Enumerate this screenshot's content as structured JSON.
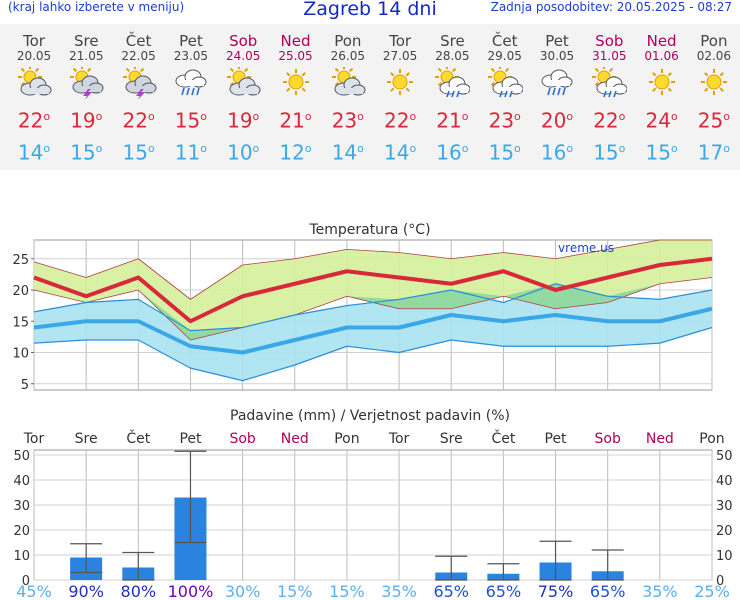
{
  "header": {
    "menu_hint": "(kraj lahko izberete v meniju)",
    "title": "Zagreb 14 dni",
    "updated": "Zadnja posodobitev: 20.05.2025 - 08:27"
  },
  "degree": "o",
  "days": [
    {
      "name": "Tor",
      "date": "20.05",
      "weekend": false,
      "icon": "sun-cloud-icon",
      "tmax": "22",
      "tmin": "14"
    },
    {
      "name": "Sre",
      "date": "21.05",
      "weekend": false,
      "icon": "sun-storm-icon",
      "tmax": "19",
      "tmin": "15"
    },
    {
      "name": "Čet",
      "date": "22.05",
      "weekend": false,
      "icon": "sun-storm-icon",
      "tmax": "22",
      "tmin": "15"
    },
    {
      "name": "Pet",
      "date": "23.05",
      "weekend": false,
      "icon": "rain-cloud-icon",
      "tmax": "15",
      "tmin": "11"
    },
    {
      "name": "Sob",
      "date": "24.05",
      "weekend": true,
      "icon": "sun-cloud-icon",
      "tmax": "19",
      "tmin": "10"
    },
    {
      "name": "Ned",
      "date": "25.05",
      "weekend": true,
      "icon": "sun-icon",
      "tmax": "21",
      "tmin": "12"
    },
    {
      "name": "Pon",
      "date": "26.05",
      "weekend": false,
      "icon": "sun-cloud-icon",
      "tmax": "23",
      "tmin": "14"
    },
    {
      "name": "Tor",
      "date": "27.05",
      "weekend": false,
      "icon": "sun-icon",
      "tmax": "22",
      "tmin": "14"
    },
    {
      "name": "Sre",
      "date": "28.05",
      "weekend": false,
      "icon": "sun-rain-icon",
      "tmax": "21",
      "tmin": "16"
    },
    {
      "name": "Čet",
      "date": "29.05",
      "weekend": false,
      "icon": "sun-rain-icon",
      "tmax": "23",
      "tmin": "15"
    },
    {
      "name": "Pet",
      "date": "30.05",
      "weekend": false,
      "icon": "rain-cloud-icon",
      "tmax": "20",
      "tmin": "16"
    },
    {
      "name": "Sob",
      "date": "31.05",
      "weekend": true,
      "icon": "sun-rain-icon",
      "tmax": "22",
      "tmin": "15"
    },
    {
      "name": "Ned",
      "date": "01.06",
      "weekend": true,
      "icon": "sun-icon",
      "tmax": "24",
      "tmin": "15"
    },
    {
      "name": "Pon",
      "date": "02.06",
      "weekend": false,
      "icon": "sun-icon",
      "tmax": "25",
      "tmin": "17"
    }
  ],
  "colors": {
    "max_line": "#d8283a",
    "min_line": "#3aa8e8",
    "max_band": "#d4ef9a",
    "min_band": "#a8e2f0",
    "overlap": "#8fd89a",
    "bar": "#2b83e0",
    "grid": "#aaaaaa",
    "weekend": "#b0005a"
  },
  "chart_data": [
    {
      "type": "area",
      "title": "Temperatura (°C)",
      "watermark": "vreme.us",
      "ylim": [
        4,
        28
      ],
      "yticks": [
        5,
        10,
        15,
        20,
        25
      ],
      "x": [
        "20.05",
        "21.05",
        "22.05",
        "23.05",
        "24.05",
        "25.05",
        "26.05",
        "27.05",
        "28.05",
        "29.05",
        "30.05",
        "31.05",
        "01.06",
        "02.06"
      ],
      "series": [
        {
          "values": [
            22,
            19,
            22,
            15,
            19,
            21,
            23,
            22,
            21,
            23,
            20,
            22,
            24,
            25
          ]
        },
        {
          "values": [
            14,
            15,
            15,
            11,
            10,
            12,
            14,
            14,
            16,
            15,
            16,
            15,
            15,
            17
          ]
        },
        {
          "values": [
            24.5,
            22,
            25,
            18.5,
            24,
            25,
            26.5,
            26,
            25,
            26,
            25,
            26.5,
            28,
            28
          ]
        },
        {
          "values": [
            20,
            18,
            20,
            12,
            14,
            16,
            19,
            17,
            17,
            19,
            17,
            18,
            21,
            22
          ]
        },
        {
          "values": [
            16.5,
            18,
            18.5,
            13.5,
            14,
            16,
            17.5,
            18.5,
            20,
            18,
            21,
            19,
            18.5,
            20
          ]
        },
        {
          "values": [
            11.5,
            12,
            12,
            7.5,
            5.5,
            8,
            11,
            10,
            12,
            11,
            11,
            11,
            11.5,
            14
          ]
        }
      ]
    },
    {
      "type": "bar",
      "title": "Padavine (mm) / Verjetnost padavin (%)",
      "ylim": [
        0,
        52
      ],
      "yticks": [
        0,
        10,
        20,
        30,
        40,
        50
      ],
      "categories": [
        "Tor",
        "Sre",
        "Čet",
        "Pet",
        "Sob",
        "Ned",
        "Pon",
        "Tor",
        "Sre",
        "Čet",
        "Pet",
        "Sob",
        "Ned",
        "Pon"
      ],
      "values": [
        0,
        9,
        5,
        33,
        0,
        0,
        0,
        0,
        3,
        2.5,
        7,
        3.5,
        0,
        0
      ],
      "range_low": [
        null,
        3,
        0,
        15,
        null,
        null,
        null,
        null,
        0,
        0,
        0,
        0,
        null,
        null
      ],
      "range_high": [
        null,
        14.5,
        11,
        51.5,
        null,
        null,
        null,
        null,
        9.5,
        6.5,
        15.5,
        12,
        null,
        null
      ],
      "probability": [
        "45%",
        "90%",
        "80%",
        "100%",
        "30%",
        "15%",
        "15%",
        "35%",
        "65%",
        "65%",
        "75%",
        "65%",
        "35%",
        "25%"
      ]
    }
  ]
}
